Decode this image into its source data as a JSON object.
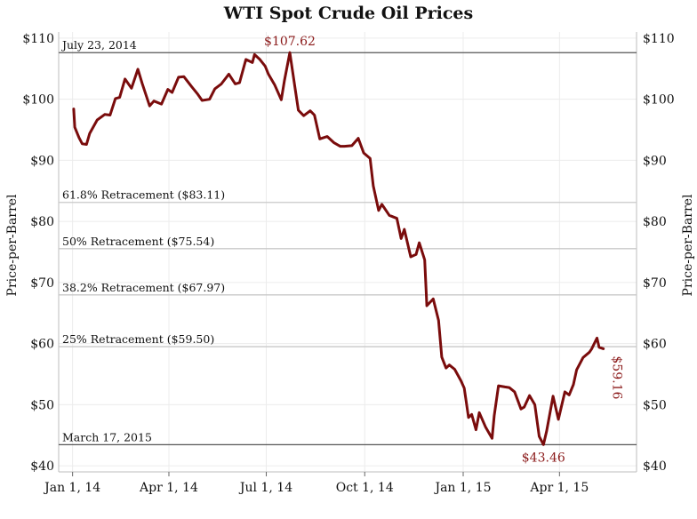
{
  "colors": {
    "line": "#7a0c0c",
    "callout": "#8b1a1a",
    "grid": "#ececec",
    "ref_line": "#c8c8c8",
    "ref_dark": "#555555"
  },
  "chart_data": {
    "type": "line",
    "title": "WTI Spot Crude Oil Prices",
    "ylabel_left": "Price-per-Barrel",
    "ylabel_right": "Price-per-Barrel",
    "ylim": [
      39,
      111
    ],
    "xlim": [
      "2013-12-19",
      "2015-06-12"
    ],
    "y_ticks": [
      {
        "value": 40,
        "label": "$40"
      },
      {
        "value": 50,
        "label": "$50"
      },
      {
        "value": 60,
        "label": "$60"
      },
      {
        "value": 70,
        "label": "$70"
      },
      {
        "value": 80,
        "label": "$80"
      },
      {
        "value": 90,
        "label": "$90"
      },
      {
        "value": 100,
        "label": "$100"
      },
      {
        "value": 110,
        "label": "$110"
      }
    ],
    "x_ticks": [
      {
        "date": "2014-01-01",
        "label": "Jan 1, 14"
      },
      {
        "date": "2014-04-01",
        "label": "Apr 1, 14"
      },
      {
        "date": "2014-07-01",
        "label": "Jul 1, 14"
      },
      {
        "date": "2014-10-01",
        "label": "Oct 1, 14"
      },
      {
        "date": "2015-01-01",
        "label": "Jan 1, 15"
      },
      {
        "date": "2015-04-01",
        "label": "Apr 1, 15"
      }
    ],
    "reference_lines": [
      {
        "value": 107.62,
        "label": "July 23, 2014",
        "style": "dark"
      },
      {
        "value": 83.11,
        "label": "61.8% Retracement ($83.11)",
        "style": "light"
      },
      {
        "value": 75.54,
        "label": "50% Retracement ($75.54)",
        "style": "light"
      },
      {
        "value": 67.97,
        "label": "38.2% Retracement ($67.97)",
        "style": "light"
      },
      {
        "value": 59.5,
        "label": "25% Retracement ($59.50)",
        "style": "light"
      },
      {
        "value": 43.46,
        "label": "March 17, 2015",
        "style": "dark"
      }
    ],
    "annotations": [
      {
        "date": "2014-07-23",
        "value": 107.62,
        "label": "$107.62",
        "position": "above"
      },
      {
        "date": "2015-03-17",
        "value": 43.46,
        "label": "$43.46",
        "position": "below"
      },
      {
        "date": "2015-05-12",
        "value": 59.16,
        "label": "$59.16",
        "position": "right-vertical"
      }
    ],
    "series": [
      {
        "values": [
          [
            "2014-01-02",
            98.4
          ],
          [
            "2014-01-03",
            95.4
          ],
          [
            "2014-01-07",
            93.7
          ],
          [
            "2014-01-10",
            92.7
          ],
          [
            "2014-01-14",
            92.6
          ],
          [
            "2014-01-17",
            94.4
          ],
          [
            "2014-01-24",
            96.6
          ],
          [
            "2014-01-31",
            97.5
          ],
          [
            "2014-02-05",
            97.4
          ],
          [
            "2014-02-10",
            100.1
          ],
          [
            "2014-02-14",
            100.3
          ],
          [
            "2014-02-19",
            103.3
          ],
          [
            "2014-02-25",
            101.8
          ],
          [
            "2014-03-03",
            104.9
          ],
          [
            "2014-03-07",
            102.6
          ],
          [
            "2014-03-14",
            98.9
          ],
          [
            "2014-03-18",
            99.7
          ],
          [
            "2014-03-25",
            99.2
          ],
          [
            "2014-03-31",
            101.6
          ],
          [
            "2014-04-04",
            101.1
          ],
          [
            "2014-04-10",
            103.6
          ],
          [
            "2014-04-15",
            103.7
          ],
          [
            "2014-04-22",
            102.1
          ],
          [
            "2014-04-28",
            100.8
          ],
          [
            "2014-05-02",
            99.8
          ],
          [
            "2014-05-09",
            99.99
          ],
          [
            "2014-05-14",
            101.7
          ],
          [
            "2014-05-20",
            102.5
          ],
          [
            "2014-05-27",
            104.1
          ],
          [
            "2014-06-02",
            102.5
          ],
          [
            "2014-06-06",
            102.7
          ],
          [
            "2014-06-12",
            106.5
          ],
          [
            "2014-06-18",
            106.0
          ],
          [
            "2014-06-20",
            107.3
          ],
          [
            "2014-06-25",
            106.5
          ],
          [
            "2014-06-30",
            105.4
          ],
          [
            "2014-07-03",
            104.1
          ],
          [
            "2014-07-09",
            102.3
          ],
          [
            "2014-07-15",
            99.9
          ],
          [
            "2014-07-18",
            103.1
          ],
          [
            "2014-07-23",
            107.62
          ],
          [
            "2014-07-28",
            101.7
          ],
          [
            "2014-07-31",
            98.2
          ],
          [
            "2014-08-05",
            97.3
          ],
          [
            "2014-08-11",
            98.1
          ],
          [
            "2014-08-15",
            97.4
          ],
          [
            "2014-08-20",
            93.5
          ],
          [
            "2014-08-27",
            93.9
          ],
          [
            "2014-09-02",
            92.9
          ],
          [
            "2014-09-08",
            92.3
          ],
          [
            "2014-09-12",
            92.3
          ],
          [
            "2014-09-19",
            92.4
          ],
          [
            "2014-09-25",
            93.6
          ],
          [
            "2014-09-30",
            91.2
          ],
          [
            "2014-10-06",
            90.3
          ],
          [
            "2014-10-09",
            85.8
          ],
          [
            "2014-10-14",
            81.8
          ],
          [
            "2014-10-17",
            82.8
          ],
          [
            "2014-10-24",
            81.0
          ],
          [
            "2014-10-31",
            80.5
          ],
          [
            "2014-11-04",
            77.2
          ],
          [
            "2014-11-07",
            78.7
          ],
          [
            "2014-11-13",
            74.2
          ],
          [
            "2014-11-18",
            74.6
          ],
          [
            "2014-11-21",
            76.5
          ],
          [
            "2014-11-26",
            73.7
          ],
          [
            "2014-11-28",
            66.2
          ],
          [
            "2014-12-04",
            67.3
          ],
          [
            "2014-12-09",
            63.8
          ],
          [
            "2014-12-12",
            57.8
          ],
          [
            "2014-12-16",
            56.0
          ],
          [
            "2014-12-19",
            56.5
          ],
          [
            "2014-12-24",
            55.8
          ],
          [
            "2014-12-30",
            53.9
          ],
          [
            "2015-01-02",
            52.7
          ],
          [
            "2015-01-06",
            47.9
          ],
          [
            "2015-01-09",
            48.4
          ],
          [
            "2015-01-13",
            45.9
          ],
          [
            "2015-01-16",
            48.7
          ],
          [
            "2015-01-22",
            46.3
          ],
          [
            "2015-01-28",
            44.5
          ],
          [
            "2015-01-30",
            48.2
          ],
          [
            "2015-02-03",
            53.1
          ],
          [
            "2015-02-09",
            52.9
          ],
          [
            "2015-02-13",
            52.8
          ],
          [
            "2015-02-18",
            52.1
          ],
          [
            "2015-02-24",
            49.3
          ],
          [
            "2015-02-27",
            49.6
          ],
          [
            "2015-03-04",
            51.5
          ],
          [
            "2015-03-09",
            50.0
          ],
          [
            "2015-03-13",
            44.8
          ],
          [
            "2015-03-17",
            43.46
          ],
          [
            "2015-03-20",
            45.7
          ],
          [
            "2015-03-26",
            51.4
          ],
          [
            "2015-03-31",
            47.6
          ],
          [
            "2015-04-06",
            52.1
          ],
          [
            "2015-04-10",
            51.6
          ],
          [
            "2015-04-14",
            53.3
          ],
          [
            "2015-04-17",
            55.7
          ],
          [
            "2015-04-23",
            57.7
          ],
          [
            "2015-04-29",
            58.6
          ],
          [
            "2015-05-01",
            59.1
          ],
          [
            "2015-05-06",
            60.9
          ],
          [
            "2015-05-08",
            59.4
          ],
          [
            "2015-05-12",
            59.16
          ]
        ]
      }
    ]
  }
}
